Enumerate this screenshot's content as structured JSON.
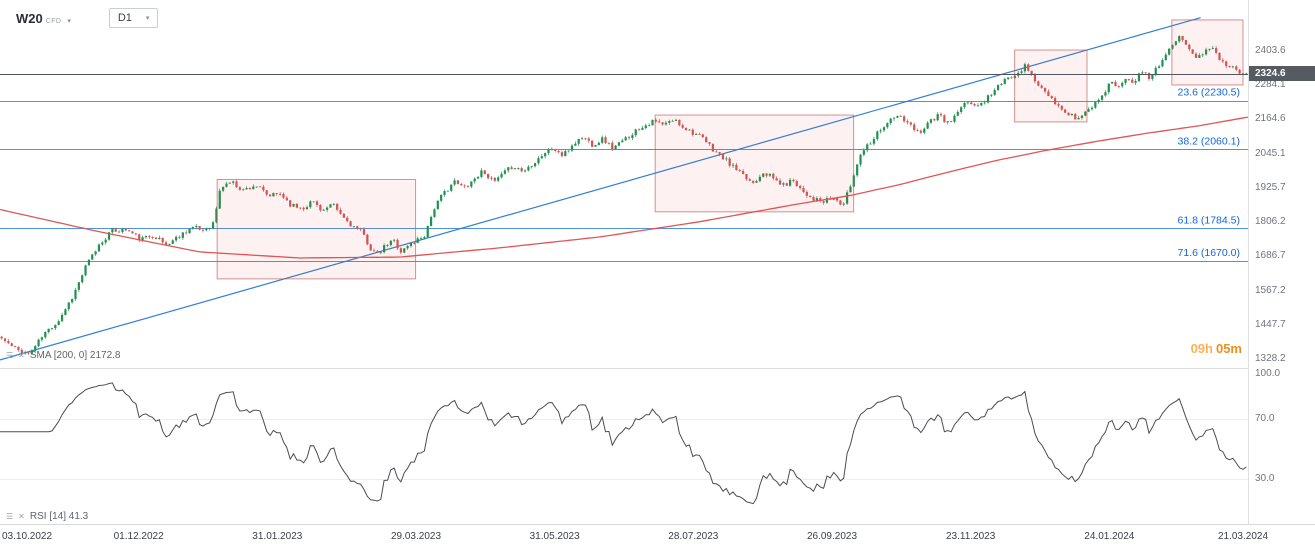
{
  "toolbar": {
    "symbol": "W20",
    "symbol_type": "CFD",
    "timeframe": "D1"
  },
  "price_pane": {
    "sma_legend": "SMA [200, 0]  2172.8",
    "countdown": {
      "hours": "09h",
      "minutes": "05m"
    }
  },
  "rsi_pane": {
    "legend": "RSI [14]  41.3"
  },
  "chart_data": {
    "type": "candlestick",
    "symbol": "W20",
    "timeframe": "D1",
    "current_price": 2324.6,
    "current_price_label": "2324.6",
    "y_ticks": [
      "2403.6",
      "2284.1",
      "2164.6",
      "2045.1",
      "1925.7",
      "1806.2",
      "1686.7",
      "1567.2",
      "1447.7",
      "1328.2"
    ],
    "rsi_ticks": [
      "100.0",
      "70.0",
      "30.0"
    ],
    "x_ticks": [
      "03.10.2022",
      "01.12.2022",
      "31.01.2023",
      "29.03.2023",
      "31.05.2023",
      "28.07.2023",
      "26.09.2023",
      "23.11.2023",
      "24.01.2024",
      "21.03.2024"
    ],
    "fib_levels": [
      {
        "label": "23.6 (2230.5)",
        "value": 2230.5
      },
      {
        "label": "38.2 (2060.1)",
        "value": 2060.1
      },
      {
        "label": "61.8 (1784.5)",
        "value": 1784.5
      },
      {
        "label": "71.6 (1670.0)",
        "value": 1670.0
      }
    ],
    "sma": {
      "period": 200,
      "shift": 0,
      "last": 2172.8,
      "waypoints": [
        [
          0.0,
          1850
        ],
        [
          0.08,
          1772
        ],
        [
          0.16,
          1702
        ],
        [
          0.24,
          1681
        ],
        [
          0.32,
          1684
        ],
        [
          0.4,
          1716
        ],
        [
          0.48,
          1754
        ],
        [
          0.56,
          1807
        ],
        [
          0.64,
          1870
        ],
        [
          0.68,
          1898
        ],
        [
          0.72,
          1936
        ],
        [
          0.76,
          1981
        ],
        [
          0.8,
          2023
        ],
        [
          0.84,
          2058
        ],
        [
          0.88,
          2089
        ],
        [
          0.92,
          2117
        ],
        [
          0.96,
          2142
        ],
        [
          1.0,
          2172.8
        ]
      ]
    },
    "rsi": {
      "period": 14,
      "last": 41.3
    },
    "trendline": {
      "from": [
        0,
        1325
      ],
      "to": [
        0.962,
        2520
      ]
    },
    "boxes": [
      {
        "x1": 0.174,
        "x2": 0.333,
        "top": 1955,
        "bottom": 1608
      },
      {
        "x1": 0.525,
        "x2": 0.684,
        "top": 2180,
        "bottom": 1842
      },
      {
        "x1": 0.813,
        "x2": 0.871,
        "top": 2407,
        "bottom": 2156
      },
      {
        "x1": 0.939,
        "x2": 0.996,
        "top": 2512,
        "bottom": 2285
      }
    ],
    "ylim": [
      1296.8,
      2581.6
    ],
    "rsi_ylim": [
      0,
      100
    ],
    "candle_count": 372,
    "seed": 11,
    "noise": 9,
    "price_waypoints": [
      [
        0.0,
        1400
      ],
      [
        0.01,
        1365
      ],
      [
        0.022,
        1345
      ],
      [
        0.034,
        1415
      ],
      [
        0.046,
        1465
      ],
      [
        0.058,
        1555
      ],
      [
        0.068,
        1655
      ],
      [
        0.078,
        1725
      ],
      [
        0.088,
        1775
      ],
      [
        0.1,
        1780
      ],
      [
        0.112,
        1745
      ],
      [
        0.122,
        1762
      ],
      [
        0.132,
        1726
      ],
      [
        0.142,
        1756
      ],
      [
        0.152,
        1788
      ],
      [
        0.162,
        1778
      ],
      [
        0.17,
        1802
      ],
      [
        0.176,
        1928
      ],
      [
        0.184,
        1948
      ],
      [
        0.194,
        1918
      ],
      [
        0.204,
        1936
      ],
      [
        0.214,
        1896
      ],
      [
        0.224,
        1906
      ],
      [
        0.233,
        1864
      ],
      [
        0.242,
        1856
      ],
      [
        0.25,
        1880
      ],
      [
        0.258,
        1846
      ],
      [
        0.266,
        1866
      ],
      [
        0.274,
        1824
      ],
      [
        0.282,
        1792
      ],
      [
        0.29,
        1768
      ],
      [
        0.296,
        1716
      ],
      [
        0.302,
        1690
      ],
      [
        0.308,
        1722
      ],
      [
        0.315,
        1744
      ],
      [
        0.321,
        1702
      ],
      [
        0.327,
        1726
      ],
      [
        0.333,
        1742
      ],
      [
        0.34,
        1762
      ],
      [
        0.347,
        1852
      ],
      [
        0.355,
        1906
      ],
      [
        0.363,
        1948
      ],
      [
        0.371,
        1926
      ],
      [
        0.379,
        1954
      ],
      [
        0.387,
        1988
      ],
      [
        0.395,
        1944
      ],
      [
        0.403,
        1974
      ],
      [
        0.411,
        2004
      ],
      [
        0.419,
        1982
      ],
      [
        0.427,
        2014
      ],
      [
        0.435,
        2044
      ],
      [
        0.443,
        2064
      ],
      [
        0.451,
        2036
      ],
      [
        0.459,
        2078
      ],
      [
        0.467,
        2104
      ],
      [
        0.475,
        2076
      ],
      [
        0.483,
        2098
      ],
      [
        0.491,
        2064
      ],
      [
        0.499,
        2088
      ],
      [
        0.507,
        2118
      ],
      [
        0.515,
        2142
      ],
      [
        0.524,
        2158
      ],
      [
        0.532,
        2144
      ],
      [
        0.54,
        2164
      ],
      [
        0.548,
        2138
      ],
      [
        0.556,
        2118
      ],
      [
        0.564,
        2094
      ],
      [
        0.572,
        2058
      ],
      [
        0.58,
        2028
      ],
      [
        0.588,
        1998
      ],
      [
        0.596,
        1964
      ],
      [
        0.604,
        1944
      ],
      [
        0.612,
        1984
      ],
      [
        0.62,
        1958
      ],
      [
        0.628,
        1934
      ],
      [
        0.636,
        1954
      ],
      [
        0.644,
        1914
      ],
      [
        0.652,
        1888
      ],
      [
        0.66,
        1874
      ],
      [
        0.668,
        1892
      ],
      [
        0.676,
        1864
      ],
      [
        0.683,
        1946
      ],
      [
        0.69,
        2048
      ],
      [
        0.698,
        2088
      ],
      [
        0.706,
        2132
      ],
      [
        0.714,
        2162
      ],
      [
        0.721,
        2178
      ],
      [
        0.729,
        2144
      ],
      [
        0.737,
        2118
      ],
      [
        0.745,
        2158
      ],
      [
        0.753,
        2178
      ],
      [
        0.761,
        2148
      ],
      [
        0.769,
        2194
      ],
      [
        0.777,
        2228
      ],
      [
        0.785,
        2208
      ],
      [
        0.793,
        2248
      ],
      [
        0.801,
        2282
      ],
      [
        0.809,
        2308
      ],
      [
        0.817,
        2334
      ],
      [
        0.823,
        2352
      ],
      [
        0.829,
        2308
      ],
      [
        0.835,
        2274
      ],
      [
        0.841,
        2244
      ],
      [
        0.847,
        2214
      ],
      [
        0.853,
        2194
      ],
      [
        0.859,
        2178
      ],
      [
        0.865,
        2168
      ],
      [
        0.872,
        2194
      ],
      [
        0.879,
        2224
      ],
      [
        0.886,
        2262
      ],
      [
        0.892,
        2298
      ],
      [
        0.898,
        2278
      ],
      [
        0.904,
        2318
      ],
      [
        0.91,
        2294
      ],
      [
        0.916,
        2332
      ],
      [
        0.922,
        2308
      ],
      [
        0.928,
        2348
      ],
      [
        0.934,
        2382
      ],
      [
        0.94,
        2418
      ],
      [
        0.946,
        2448
      ],
      [
        0.952,
        2430
      ],
      [
        0.957,
        2400
      ],
      [
        0.961,
        2376
      ],
      [
        0.965,
        2398
      ],
      [
        0.969,
        2424
      ],
      [
        0.973,
        2408
      ],
      [
        0.977,
        2386
      ],
      [
        0.983,
        2362
      ],
      [
        0.99,
        2342
      ],
      [
        1.0,
        2324.6
      ]
    ],
    "colors": {
      "up": "#219150",
      "down": "#d05454",
      "sma": "#e05656",
      "trend": "#2e7fd9",
      "fib_line": "#4f94e0",
      "fib_label": "#1565d8",
      "box_fill": "rgba(231,76,60,0.07)",
      "box_stroke": "rgba(192,87,87,0.65)",
      "rsi_line": "#4a4d52",
      "rsi_guide": "#ededed",
      "price_line": "#51565c",
      "tag_bg": "#565b61",
      "countdown_h": "#ffb054",
      "countdown_m": "#ef8f1f"
    }
  }
}
